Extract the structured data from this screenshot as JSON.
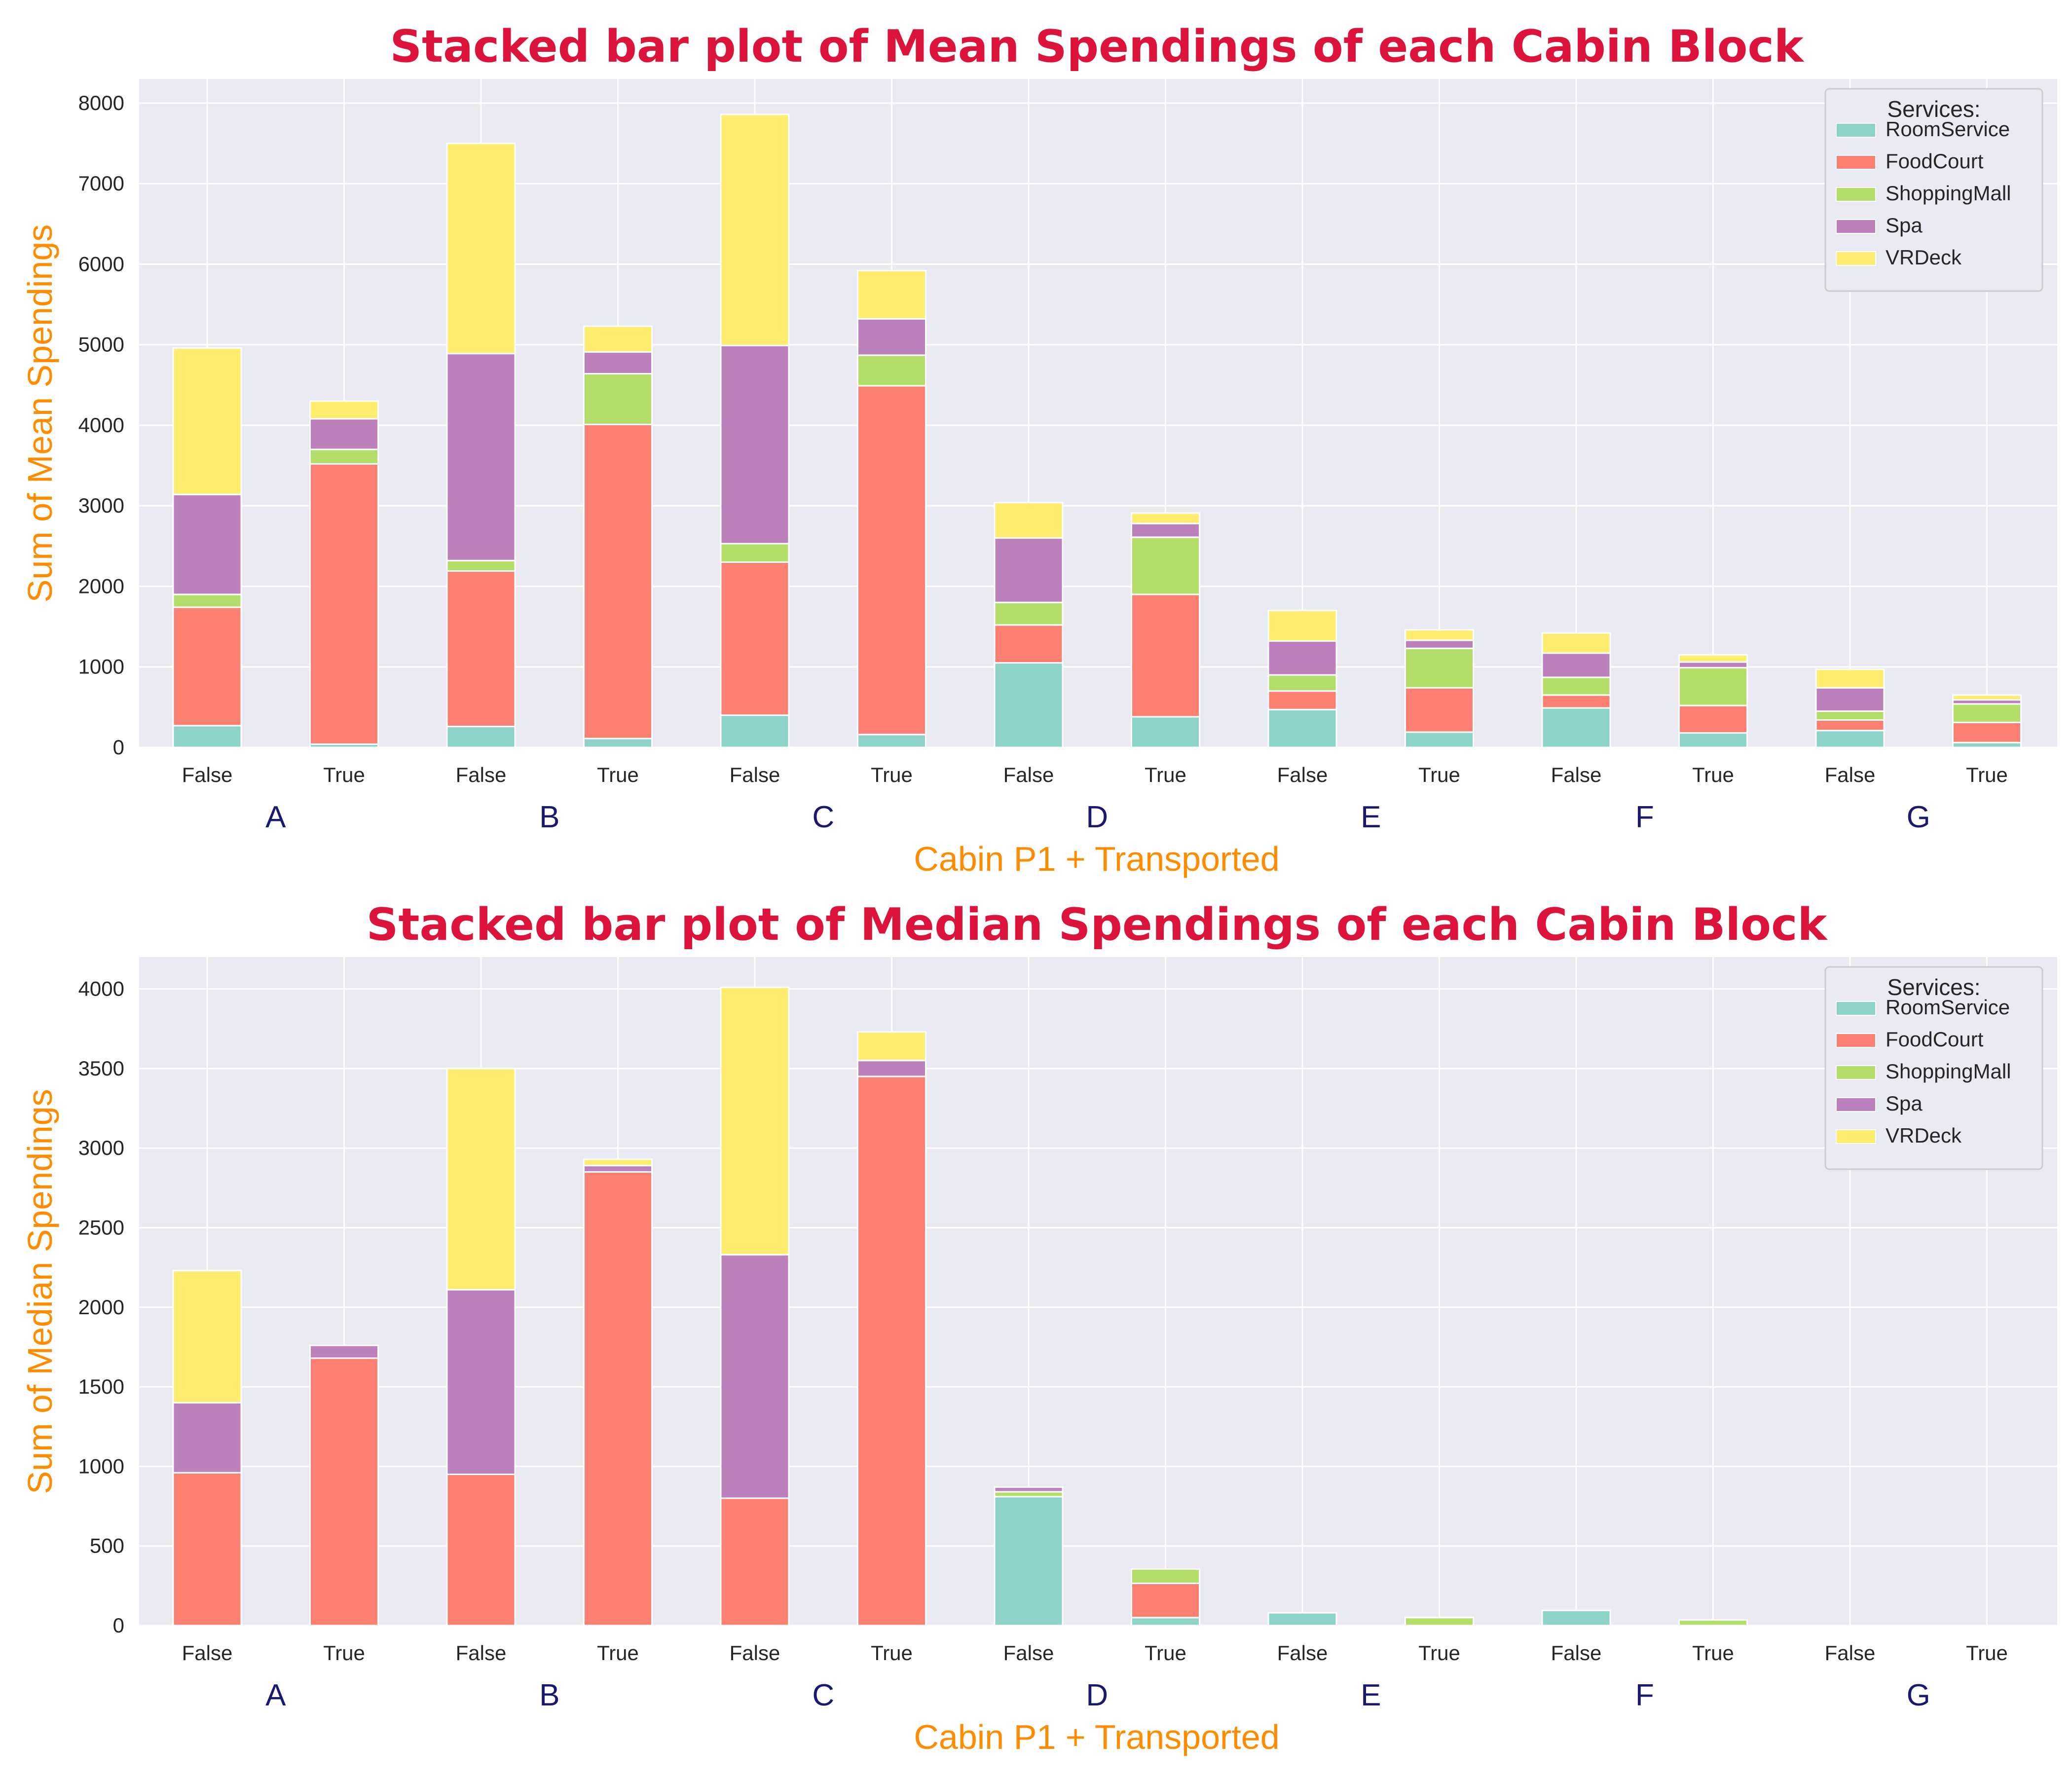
{
  "chart_data": [
    {
      "type": "bar",
      "stacked": true,
      "title": "Stacked bar plot of Mean Spendings of each Cabin Block",
      "xlabel": "Cabin P1 + Transported",
      "ylabel": "Sum of Mean Spendings",
      "ylim": [
        0,
        8300
      ],
      "yticks": [
        0,
        1000,
        2000,
        3000,
        4000,
        5000,
        6000,
        7000,
        8000
      ],
      "groups": [
        "A",
        "B",
        "C",
        "D",
        "E",
        "F",
        "G"
      ],
      "categories": [
        "False",
        "True",
        "False",
        "True",
        "False",
        "True",
        "False",
        "True",
        "False",
        "True",
        "False",
        "True",
        "False",
        "True"
      ],
      "legend_title": "Services:",
      "legend_position": "top-right",
      "grid": true,
      "series": [
        {
          "name": "RoomService",
          "color": "#8dd3c7",
          "values": [
            270,
            40,
            260,
            110,
            400,
            160,
            1050,
            380,
            470,
            190,
            490,
            180,
            210,
            60
          ]
        },
        {
          "name": "FoodCourt",
          "color": "#fb8072",
          "values": [
            1470,
            3480,
            1930,
            3900,
            1900,
            4330,
            470,
            1520,
            230,
            550,
            160,
            340,
            130,
            250
          ]
        },
        {
          "name": "ShoppingMall",
          "color": "#b3de69",
          "values": [
            160,
            180,
            130,
            630,
            230,
            380,
            280,
            710,
            200,
            490,
            220,
            470,
            110,
            230
          ]
        },
        {
          "name": "Spa",
          "color": "#bc80bd",
          "values": [
            1240,
            380,
            2570,
            270,
            2460,
            450,
            800,
            170,
            420,
            100,
            300,
            70,
            290,
            50
          ]
        },
        {
          "name": "VRDeck",
          "color": "#ffed6f",
          "values": [
            1820,
            220,
            2610,
            320,
            2870,
            600,
            440,
            130,
            380,
            130,
            250,
            90,
            230,
            60
          ]
        }
      ]
    },
    {
      "type": "bar",
      "stacked": true,
      "title": "Stacked bar plot of Median Spendings of each Cabin Block",
      "xlabel": "Cabin P1 + Transported",
      "ylabel": "Sum of Median Spendings",
      "ylim": [
        0,
        4200
      ],
      "yticks": [
        0,
        500,
        1000,
        1500,
        2000,
        2500,
        3000,
        3500,
        4000
      ],
      "groups": [
        "A",
        "B",
        "C",
        "D",
        "E",
        "F",
        "G"
      ],
      "categories": [
        "False",
        "True",
        "False",
        "True",
        "False",
        "True",
        "False",
        "True",
        "False",
        "True",
        "False",
        "True",
        "False",
        "True"
      ],
      "legend_title": "Services:",
      "legend_position": "top-right",
      "grid": true,
      "series": [
        {
          "name": "RoomService",
          "color": "#8dd3c7",
          "values": [
            0,
            0,
            0,
            0,
            0,
            0,
            810,
            50,
            80,
            0,
            95,
            0,
            0,
            0
          ]
        },
        {
          "name": "FoodCourt",
          "color": "#fb8072",
          "values": [
            960,
            1680,
            950,
            2850,
            800,
            3450,
            0,
            215,
            0,
            0,
            0,
            0,
            0,
            0
          ]
        },
        {
          "name": "ShoppingMall",
          "color": "#b3de69",
          "values": [
            0,
            0,
            0,
            0,
            0,
            0,
            30,
            90,
            0,
            50,
            0,
            35,
            0,
            0
          ]
        },
        {
          "name": "Spa",
          "color": "#bc80bd",
          "values": [
            440,
            80,
            1160,
            40,
            1530,
            100,
            30,
            0,
            0,
            0,
            0,
            0,
            0,
            0
          ]
        },
        {
          "name": "VRDeck",
          "color": "#ffed6f",
          "values": [
            830,
            0,
            1390,
            40,
            1680,
            180,
            0,
            0,
            0,
            0,
            0,
            0,
            0,
            0
          ]
        }
      ]
    }
  ]
}
